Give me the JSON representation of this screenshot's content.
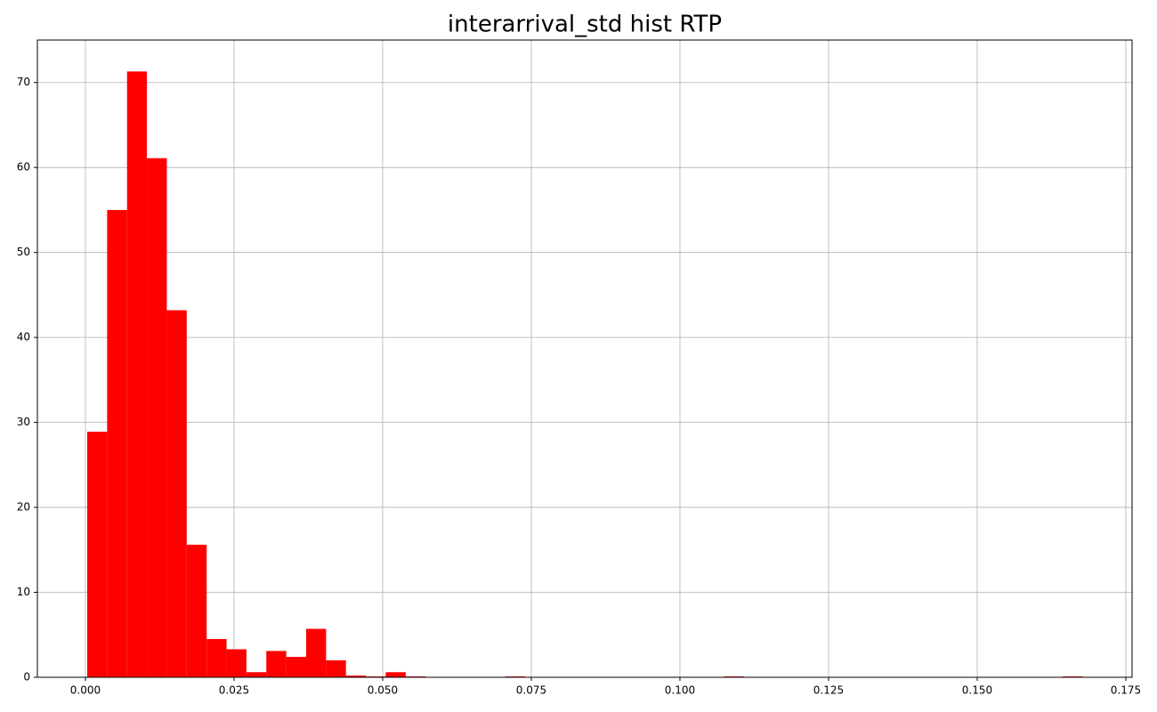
{
  "chart_data": {
    "type": "histogram",
    "title": "interarrival_std hist RTP",
    "color": "#ff0000",
    "grid": true,
    "bins": [
      0.0003,
      0.00365,
      0.007,
      0.01034,
      0.01369,
      0.01704,
      0.02039,
      0.02374,
      0.02708,
      0.03043,
      0.03378,
      0.03713,
      0.04048,
      0.04382,
      0.04717,
      0.05052,
      0.05387,
      0.05722,
      0.06056,
      0.06391,
      0.06726,
      0.07061,
      0.07396,
      0.0773,
      0.08065,
      0.084,
      0.08735,
      0.0907,
      0.09404,
      0.09739,
      0.10074,
      0.10409,
      0.10744,
      0.11078,
      0.11413,
      0.11748,
      0.12083,
      0.12418,
      0.12752,
      0.13087,
      0.13422,
      0.13757,
      0.14092,
      0.14426,
      0.14761,
      0.15096,
      0.15431,
      0.15766,
      0.161,
      0.16435,
      0.1677
    ],
    "values": [
      28.9,
      55,
      71.3,
      61.1,
      43.2,
      15.6,
      4.5,
      3.3,
      0.6,
      3.1,
      2.4,
      5.7,
      2.0,
      0.2,
      0.1,
      0.6,
      0.1,
      0,
      0,
      0,
      0,
      0.1,
      0,
      0,
      0,
      0,
      0,
      0,
      0,
      0,
      0,
      0,
      0.1,
      0,
      0,
      0,
      0,
      0,
      0,
      0,
      0,
      0,
      0,
      0,
      0,
      0,
      0,
      0,
      0,
      0.1
    ],
    "xlim": [
      -0.00808,
      0.17605
    ],
    "ylim": [
      0,
      75
    ],
    "xticks": [
      {
        "value": 0,
        "label": "0.000"
      },
      {
        "value": 0.025,
        "label": "0.025"
      },
      {
        "value": 0.05,
        "label": "0.050"
      },
      {
        "value": 0.075,
        "label": "0.075"
      },
      {
        "value": 0.1,
        "label": "0.100"
      },
      {
        "value": 0.125,
        "label": "0.125"
      },
      {
        "value": 0.15,
        "label": "0.150"
      },
      {
        "value": 0.175,
        "label": "0.175"
      }
    ],
    "yticks": [
      0,
      10,
      20,
      30,
      40,
      50,
      60,
      70
    ]
  }
}
